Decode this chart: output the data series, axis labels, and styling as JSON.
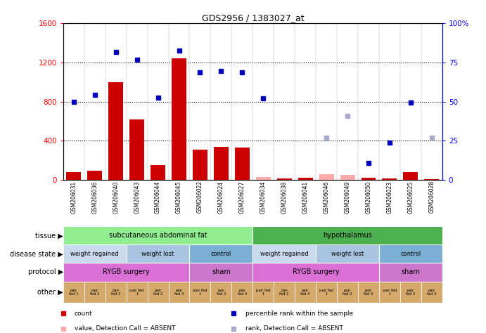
{
  "title": "GDS2956 / 1383027_at",
  "samples": [
    "GSM206031",
    "GSM206036",
    "GSM206040",
    "GSM206043",
    "GSM206044",
    "GSM206045",
    "GSM206022",
    "GSM206024",
    "GSM206027",
    "GSM206034",
    "GSM206038",
    "GSM206041",
    "GSM206046",
    "GSM206049",
    "GSM206050",
    "GSM206023",
    "GSM206025",
    "GSM206028"
  ],
  "count_values": [
    80,
    95,
    1000,
    620,
    150,
    1240,
    310,
    340,
    330,
    30,
    15,
    20,
    60,
    50,
    20,
    15,
    80,
    10
  ],
  "count_absent": [
    false,
    false,
    false,
    false,
    false,
    false,
    false,
    false,
    false,
    true,
    false,
    false,
    true,
    true,
    false,
    false,
    false,
    false
  ],
  "rank_values": [
    800,
    870,
    1310,
    1230,
    840,
    1320,
    1100,
    1110,
    1100,
    830,
    null,
    null,
    430,
    650,
    175,
    380,
    790,
    430
  ],
  "rank_absent": [
    false,
    false,
    false,
    false,
    false,
    false,
    false,
    false,
    false,
    false,
    true,
    true,
    true,
    true,
    false,
    false,
    false,
    true
  ],
  "ylim_left": [
    0,
    1600
  ],
  "ylim_right": [
    0,
    100
  ],
  "yticks_left": [
    0,
    400,
    800,
    1200,
    1600
  ],
  "yticks_right": [
    0,
    25,
    50,
    75,
    100
  ],
  "tissue_groups": [
    {
      "label": "subcutaneous abdominal fat",
      "start": 0,
      "end": 9,
      "color": "#90EE90"
    },
    {
      "label": "hypothalamus",
      "start": 9,
      "end": 18,
      "color": "#4CAF50"
    }
  ],
  "disease_groups": [
    {
      "label": "weight regained",
      "start": 0,
      "end": 3,
      "color": "#C9D9EE"
    },
    {
      "label": "weight lost",
      "start": 3,
      "end": 6,
      "color": "#A8C4E0"
    },
    {
      "label": "control",
      "start": 6,
      "end": 9,
      "color": "#7BAFD4"
    },
    {
      "label": "weight regained",
      "start": 9,
      "end": 12,
      "color": "#C9D9EE"
    },
    {
      "label": "weight lost",
      "start": 12,
      "end": 15,
      "color": "#A8C4E0"
    },
    {
      "label": "control",
      "start": 15,
      "end": 18,
      "color": "#7BAFD4"
    }
  ],
  "protocol_groups": [
    {
      "label": "RYGB surgery",
      "start": 0,
      "end": 6,
      "color": "#DA70D6"
    },
    {
      "label": "sham",
      "start": 6,
      "end": 9,
      "color": "#CC77CC"
    },
    {
      "label": "RYGB surgery",
      "start": 9,
      "end": 15,
      "color": "#DA70D6"
    },
    {
      "label": "sham",
      "start": 15,
      "end": 18,
      "color": "#CC77CC"
    }
  ],
  "other_labels": [
    "pair\nfed 1",
    "pair\nfed 2",
    "pair\nfed 3",
    "pair fed\n1",
    "pair\nfed 2",
    "pair\nfed 3",
    "pair fed\n1",
    "pair\nfed 2",
    "pair\nfed 3",
    "pair fed\n1",
    "pair\nfed 2",
    "pair\nfed 3",
    "pair fed\n1",
    "pair\nfed 2",
    "pair\nfed 3",
    "pair fed\n1",
    "pair\nfed 2",
    "pair\nfed 3"
  ],
  "other_color": "#D4A96A",
  "bar_color": "#CC0000",
  "bar_absent_color": "#FFAAAA",
  "rank_color": "#0000BB",
  "rank_absent_color": "#AAAACC",
  "row_labels": [
    "tissue",
    "disease state",
    "protocol",
    "other"
  ],
  "legend_items": [
    {
      "color": "#CC0000",
      "label": "count"
    },
    {
      "color": "#0000BB",
      "label": "percentile rank within the sample"
    },
    {
      "color": "#FFAAAA",
      "label": "value, Detection Call = ABSENT"
    },
    {
      "color": "#AAAACC",
      "label": "rank, Detection Call = ABSENT"
    }
  ]
}
